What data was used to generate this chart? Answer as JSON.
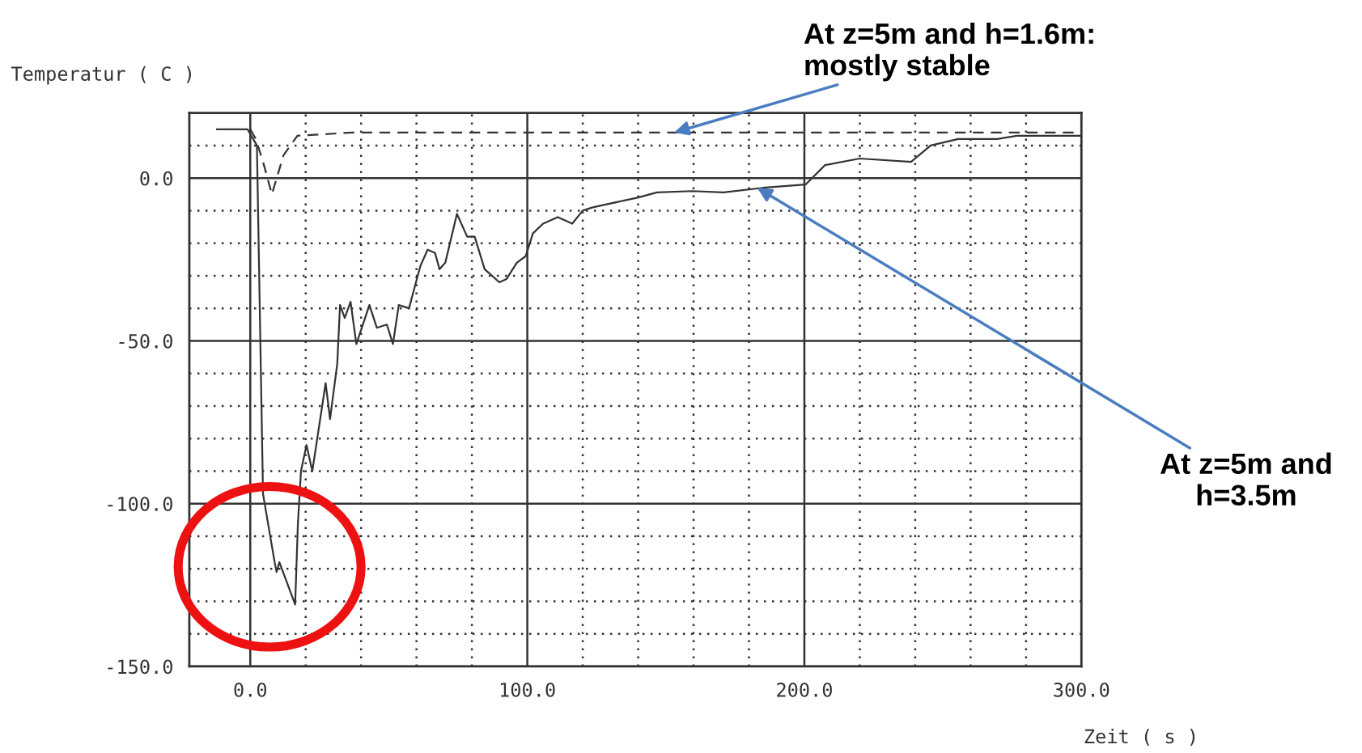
{
  "chart_data": {
    "type": "line",
    "xlabel": "Zeit ( s )",
    "ylabel": "Temperatur ( C )",
    "xlim": [
      -22,
      300
    ],
    "ylim": [
      -150,
      20
    ],
    "xticks": [
      {
        "value": 0,
        "label": "0.0"
      },
      {
        "value": 20,
        "label": null
      },
      {
        "value": 40,
        "label": null
      },
      {
        "value": 60,
        "label": null
      },
      {
        "value": 80,
        "label": null
      },
      {
        "value": 100,
        "label": "100.0"
      },
      {
        "value": 120,
        "label": null
      },
      {
        "value": 140,
        "label": null
      },
      {
        "value": 160,
        "label": null
      },
      {
        "value": 180,
        "label": null
      },
      {
        "value": 200,
        "label": "200.0"
      },
      {
        "value": 220,
        "label": null
      },
      {
        "value": 240,
        "label": null
      },
      {
        "value": 260,
        "label": null
      },
      {
        "value": 280,
        "label": null
      },
      {
        "value": 300,
        "label": "300.0"
      }
    ],
    "yticks": [
      {
        "value": -150,
        "label": "-150.0"
      },
      {
        "value": -140,
        "label": null
      },
      {
        "value": -130,
        "label": null
      },
      {
        "value": -120,
        "label": null
      },
      {
        "value": -110,
        "label": null
      },
      {
        "value": -100,
        "label": "-100.0"
      },
      {
        "value": -90,
        "label": null
      },
      {
        "value": -80,
        "label": null
      },
      {
        "value": -70,
        "label": null
      },
      {
        "value": -60,
        "label": null
      },
      {
        "value": -50,
        "label": "-50.0"
      },
      {
        "value": -40,
        "label": null
      },
      {
        "value": -30,
        "label": null
      },
      {
        "value": -20,
        "label": null
      },
      {
        "value": -10,
        "label": null
      },
      {
        "value": 0,
        "label": "0.0"
      },
      {
        "value": 10,
        "label": null
      }
    ],
    "grid": true,
    "marker": "none",
    "series": [
      {
        "color": "#333333",
        "line_style": "solid",
        "x": [
          -12,
          -1,
          2.4,
          4.6,
          8.8,
          9.5,
          10.5,
          16.2,
          17.2,
          18.3,
          20.3,
          22.4,
          27.2,
          28.8,
          31.4,
          32.4,
          34.1,
          36.2,
          38.3,
          43,
          45.7,
          49.3,
          51.5,
          53.6,
          57.3,
          61.4,
          64,
          66.7,
          68.3,
          70.4,
          74.6,
          78.3,
          81,
          84.6,
          89.9,
          92.5,
          96.2,
          99.4,
          102,
          105.7,
          111,
          116.2,
          120,
          123.6,
          139.8,
          146.8,
          159.5,
          170.8,
          185,
          200.4,
          207.5,
          220,
          238.5,
          245.6,
          255.5,
          269.6,
          276.7,
          300
        ],
        "values": [
          15,
          15,
          10,
          -97,
          -118,
          -121,
          -118,
          -131,
          -106,
          -90,
          -82,
          -90,
          -63,
          -74,
          -57,
          -39,
          -43,
          -38,
          -51,
          -39,
          -46,
          -45,
          -51,
          -39,
          -40,
          -27,
          -22,
          -23,
          -28,
          -26,
          -11,
          -18,
          -18,
          -28,
          -32,
          -31,
          -26,
          -24,
          -17,
          -14,
          -12,
          -14,
          -10,
          -9,
          -6,
          -4.4,
          -4,
          -4.4,
          -3,
          -2,
          4,
          6,
          5,
          10,
          12,
          12,
          13,
          13
        ]
      },
      {
        "color": "#333333",
        "line_style": "dashed",
        "x": [
          0,
          2,
          4.6,
          7.8,
          12,
          17,
          37,
          100,
          150,
          200,
          250,
          300
        ],
        "values": [
          15,
          12,
          5,
          -5,
          7,
          13,
          14,
          14,
          14,
          14,
          14,
          14
        ]
      }
    ],
    "annotations": [
      {
        "text": "At z=5m and h=1.6m:\nmostly stable",
        "x": 153,
        "y": 14
      },
      {
        "text": "At z=5m and\nh=3.5m",
        "x": 183,
        "y": -3
      }
    ]
  }
}
